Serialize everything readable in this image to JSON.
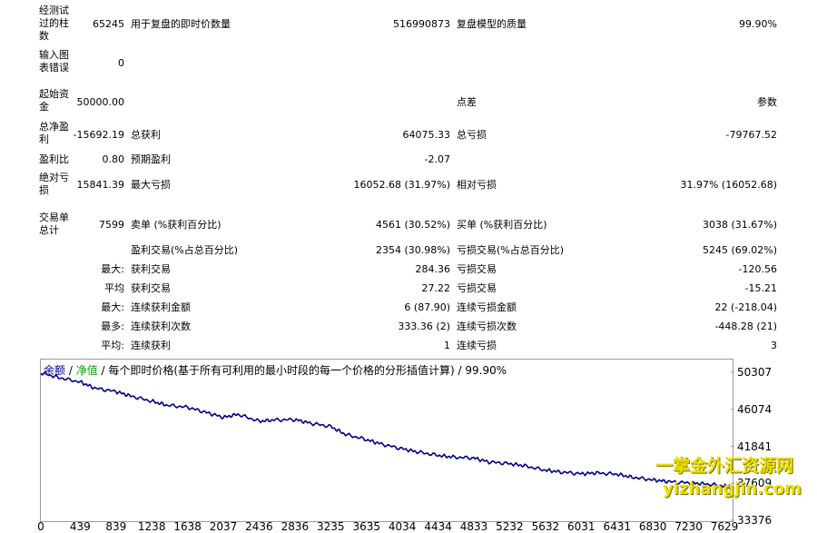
{
  "report": {
    "bars_label": "经测试过的柱数",
    "bars_value": "65245",
    "ticks_label": "用于复盘的即时价数量",
    "ticks_value": "516990873",
    "quality_label": "复盘模型的质量",
    "quality_value": "99.90%",
    "mismatch_label": "输入图表错误",
    "mismatch_value": "0",
    "deposit_label": "起始资金",
    "deposit_value": "50000.00",
    "spread_label": "点差",
    "spread_value": "参数",
    "net_label": "总净盈利",
    "net_value": "-15692.19",
    "gross_profit_label": "总获利",
    "gross_profit_value": "64075.33",
    "gross_loss_label": "总亏损",
    "gross_loss_value": "-79767.52",
    "pf_label": "盈利比",
    "pf_value": "0.80",
    "expected_label": "预期盈利",
    "expected_value": "-2.07",
    "abs_dd_label": "绝对亏损",
    "abs_dd_value": "15841.39",
    "max_dd_label": "最大亏损",
    "max_dd_value": "16052.68 (31.97%)",
    "rel_dd_label": "相对亏损",
    "rel_dd_value": "31.97% (16052.68)",
    "total_trades_label": "交易单总计",
    "total_trades_value": "7599",
    "short_label": "卖单 (%获利百分比)",
    "short_value": "4561 (30.52%)",
    "long_label": "买单 (%获利百分比)",
    "long_value": "3038 (31.67%)",
    "win_label": "盈利交易(%占总百分比)",
    "win_value": "2354 (30.98%)",
    "loss_label": "亏损交易(%占总百分比)",
    "loss_value": "5245 (69.02%)",
    "largest_prefix": "最大:",
    "largest_win_label": "获利交易",
    "largest_win_value": "284.36",
    "largest_loss_label": "亏损交易",
    "largest_loss_value": "-120.56",
    "average_prefix": "平均",
    "avg_win_label": "获利交易",
    "avg_win_value": "27.22",
    "avg_loss_label": "亏损交易",
    "avg_loss_value": "-15.21",
    "max_prefix": "最大:",
    "max_cons_win_label": "连续获利金额",
    "max_cons_win_value": "6 (87.90)",
    "max_cons_loss_label": "连续亏损金额",
    "max_cons_loss_value": "22 (-218.04)",
    "most_prefix": "最多:",
    "most_cons_profit_label": "连续获利次数",
    "most_cons_profit_value": "333.36 (2)",
    "most_cons_loss_label": "连续亏损次数",
    "most_cons_loss_value": "-448.28 (21)",
    "avgcons_prefix": "平均:",
    "avg_cons_win_label": "连续获利",
    "avg_cons_win_value": "1",
    "avg_cons_loss_label": "连续亏损",
    "avg_cons_loss_value": "3"
  },
  "legend": {
    "balance": "余额",
    "sep1": " / ",
    "equity": "净值",
    "sep2": " / ",
    "rest": "每个即时价格(基于所有可利用的最小时段的每一个价格的分形插值计算) / 99.90%"
  },
  "watermark": {
    "line1": "一掌金外汇资源网",
    "line2": "yizhangjin.com"
  },
  "colors": {
    "balance_line": "#00008b",
    "equity_label": "#00a000",
    "watermark": "#f0e000"
  },
  "chart_data": {
    "type": "line",
    "series": [
      {
        "name": "余额",
        "x": [
          0,
          200,
          439,
          600,
          839,
          1000,
          1238,
          1400,
          1638,
          1850,
          2037,
          2200,
          2436,
          2600,
          2836,
          3000,
          3235,
          3400,
          3635,
          3800,
          4034,
          4200,
          4434,
          4600,
          4833,
          5000,
          5232,
          5400,
          5632,
          5800,
          6031,
          6200,
          6431,
          6600,
          6830,
          7000,
          7230,
          7400,
          7629,
          7700
        ],
        "y": [
          50250,
          49700,
          49200,
          48500,
          48100,
          47600,
          47000,
          46550,
          46300,
          45700,
          45150,
          45500,
          44700,
          44850,
          44900,
          44500,
          44100,
          43200,
          42600,
          42100,
          41550,
          41200,
          40800,
          40600,
          40500,
          40050,
          39850,
          39600,
          39100,
          38900,
          38700,
          38800,
          38650,
          38300,
          38000,
          37800,
          37650,
          37550,
          37300,
          37150
        ]
      }
    ],
    "x_ticks": [
      "0",
      "439",
      "839",
      "1238",
      "1638",
      "2037",
      "2436",
      "2836",
      "3235",
      "3635",
      "4034",
      "4434",
      "4833",
      "5232",
      "5632",
      "6031",
      "6431",
      "6830",
      "7230",
      "7629"
    ],
    "y_ticks": [
      "50307",
      "46074",
      "41841",
      "37609",
      "33376"
    ],
    "xlim": [
      0,
      7700
    ],
    "ylim": [
      33376,
      50307
    ],
    "grid": false,
    "legend_position": "top-left"
  }
}
